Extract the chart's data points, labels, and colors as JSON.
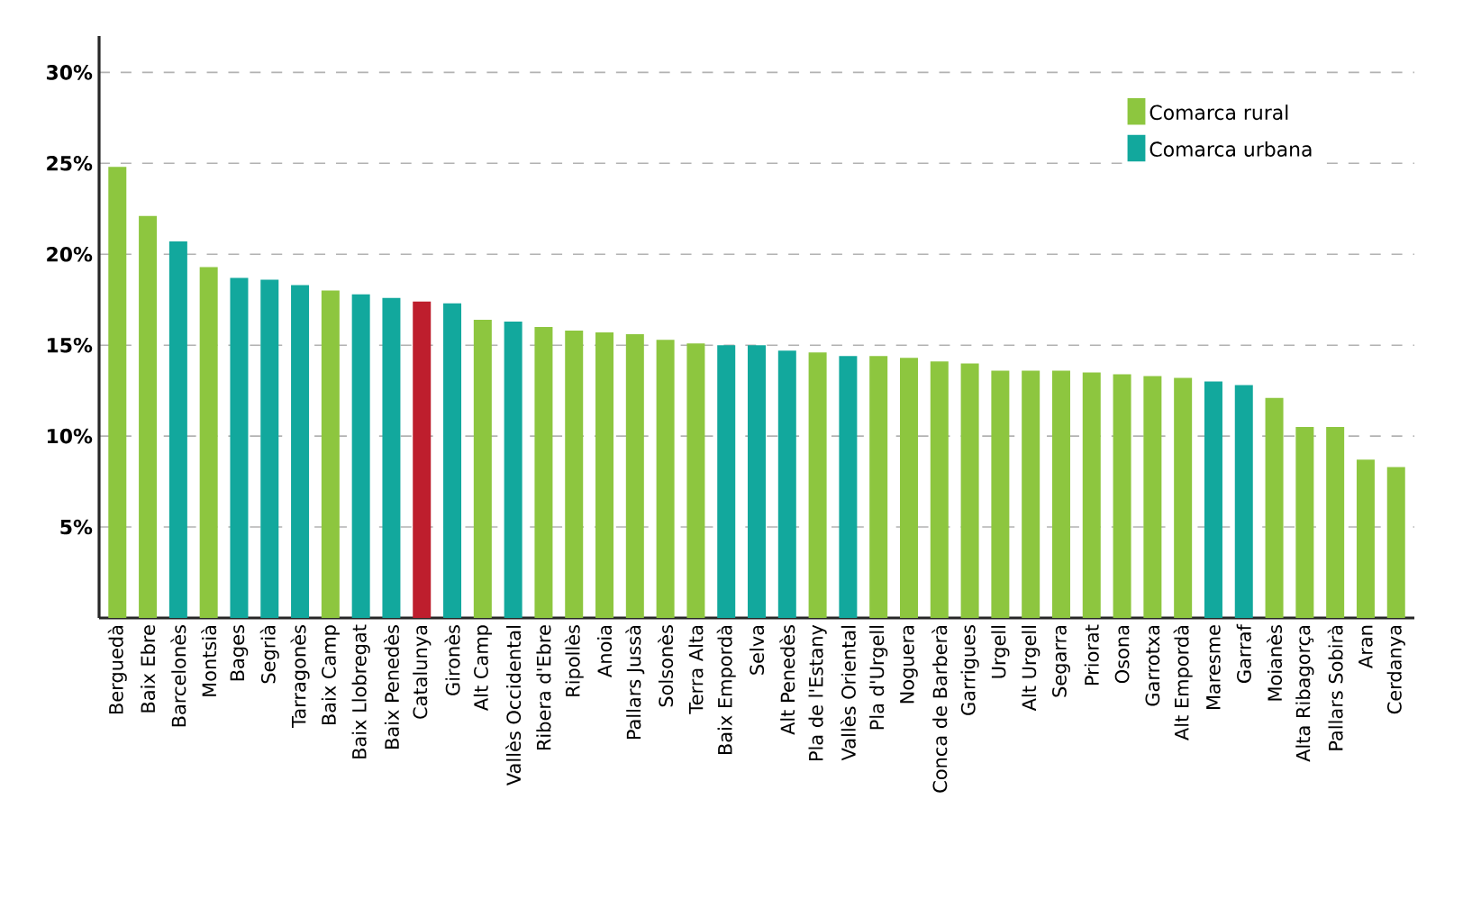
{
  "chart_data": {
    "type": "bar",
    "categories": [
      "Berguedà",
      "Baix Ebre",
      "Barcelonès",
      "Montsià",
      "Bages",
      "Segrià",
      "Tarragonès",
      "Baix Camp",
      "Baix Llobregat",
      "Baix Penedès",
      "Catalunya",
      "Gironès",
      "Alt Camp",
      "Vallès Occidental",
      "Ribera d'Ebre",
      "Ripollès",
      "Anoia",
      "Pallars Jussà",
      "Solsonès",
      "Terra Alta",
      "Baix Empordà",
      "Selva",
      "Alt Penedès",
      "Pla de l'Estany",
      "Vallès Oriental",
      "Pla d'Urgell",
      "Noguera",
      "Conca de Barberà",
      "Garrigues",
      "Urgell",
      "Alt Urgell",
      "Segarra",
      "Priorat",
      "Osona",
      "Garrotxa",
      "Alt Empordà",
      "Maresme",
      "Garraf",
      "Moianès",
      "Alta Ribagorça",
      "Pallars Sobirà",
      "Aran",
      "Cerdanya"
    ],
    "series": [
      {
        "name": "Comarca rural",
        "color": "#8dc63f",
        "values": [
          24.8,
          22.1,
          null,
          19.3,
          null,
          null,
          null,
          18.0,
          null,
          null,
          null,
          null,
          16.4,
          null,
          16.0,
          15.8,
          15.7,
          15.6,
          15.3,
          15.1,
          null,
          null,
          null,
          14.6,
          null,
          14.4,
          14.3,
          14.1,
          14.0,
          13.6,
          13.6,
          13.6,
          13.5,
          13.4,
          13.3,
          13.2,
          null,
          null,
          12.1,
          10.5,
          10.5,
          8.7,
          8.3
        ]
      },
      {
        "name": "Comarca urbana",
        "color": "#12a89d",
        "values": [
          null,
          null,
          20.7,
          null,
          18.7,
          18.6,
          18.3,
          null,
          17.8,
          17.6,
          null,
          17.3,
          null,
          16.3,
          null,
          null,
          null,
          null,
          null,
          null,
          15.0,
          15.0,
          14.7,
          null,
          14.4,
          null,
          null,
          null,
          null,
          null,
          null,
          null,
          null,
          null,
          null,
          null,
          13.0,
          12.8,
          null,
          null,
          null,
          null,
          null
        ]
      },
      {
        "color": "#be1e2d",
        "values": [
          null,
          null,
          null,
          null,
          null,
          null,
          null,
          null,
          null,
          null,
          17.4,
          null,
          null,
          null,
          null,
          null,
          null,
          null,
          null,
          null,
          null,
          null,
          null,
          null,
          null,
          null,
          null,
          null,
          null,
          null,
          null,
          null,
          null,
          null,
          null,
          null,
          null,
          null,
          null,
          null,
          null,
          null,
          null
        ]
      }
    ],
    "ylim": [
      0,
      32
    ],
    "yticks": [
      {
        "value": 5,
        "label": "5%"
      },
      {
        "value": 10,
        "label": "10%"
      },
      {
        "value": 15,
        "label": "15%"
      },
      {
        "value": 20,
        "label": "20%"
      },
      {
        "value": 25,
        "label": "25%"
      },
      {
        "value": 30,
        "label": "30%"
      }
    ],
    "grid": "y",
    "legend": "top right"
  }
}
